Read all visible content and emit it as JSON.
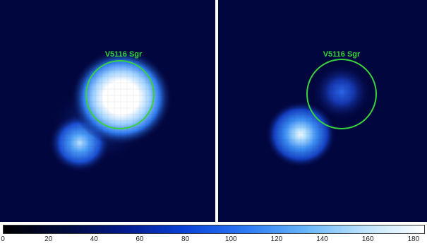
{
  "image": {
    "left_panel": {
      "source_label": "V5116 Sgr",
      "marker_color": "#37d23c"
    },
    "right_panel": {
      "source_label": "V5116 Sgr",
      "marker_color": "#37d23c"
    }
  },
  "colorbar": {
    "tick_labels": [
      "0",
      "20",
      "40",
      "60",
      "80",
      "100",
      "120",
      "140",
      "160",
      "180"
    ],
    "min": 0,
    "max": 185,
    "colors": [
      "#000000",
      "#010a3a",
      "#021a8a",
      "#0a40d8",
      "#2a78f4",
      "#64b4fa",
      "#bde4fc",
      "#ffffff"
    ]
  }
}
